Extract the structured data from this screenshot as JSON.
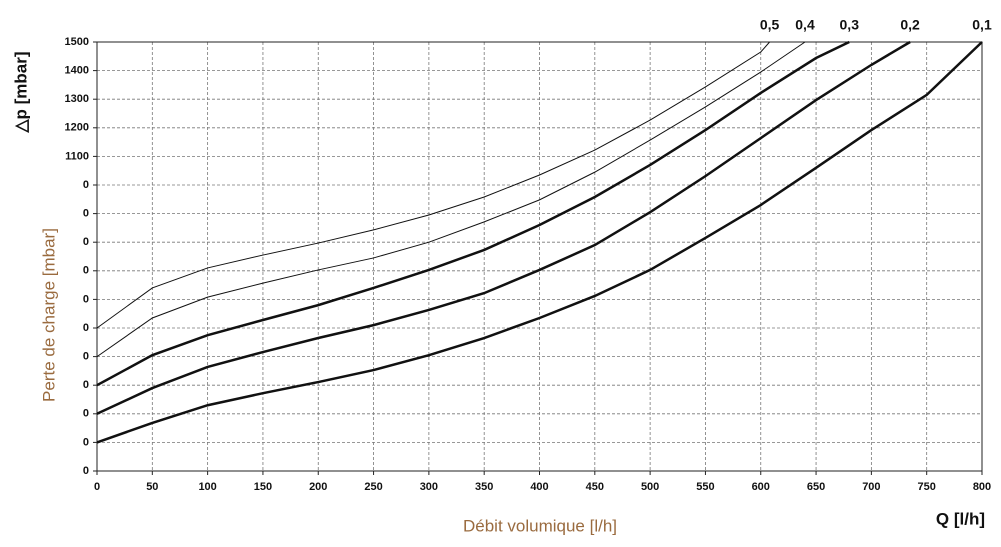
{
  "chart_data": {
    "type": "line",
    "y_label_top": "△p [mbar]",
    "y_label": "Perte de charge [mbar]",
    "x_label": "Débit volumique [l/h]",
    "x_label_right": "Q [l/h]",
    "label_color": "#9a6b3f",
    "xlim": [
      0,
      800
    ],
    "ylim": [
      0,
      1500
    ],
    "xticks": [
      0,
      50,
      100,
      150,
      200,
      250,
      300,
      350,
      400,
      450,
      500,
      550,
      600,
      650,
      700,
      750,
      800
    ],
    "yticks": [
      0,
      {
        "value": 100,
        "label": "0"
      },
      {
        "value": 200,
        "label": "0"
      },
      {
        "value": 300,
        "label": "0"
      },
      {
        "value": 400,
        "label": "0"
      },
      {
        "value": 500,
        "label": "0"
      },
      {
        "value": 600,
        "label": "0"
      },
      {
        "value": 700,
        "label": "0"
      },
      {
        "value": 800,
        "label": "0"
      },
      {
        "value": 900,
        "label": "0"
      },
      {
        "value": 1000,
        "label": "0"
      },
      1100,
      1200,
      1300,
      1400,
      1500
    ],
    "grid": true,
    "series": [
      {
        "name": "0,5",
        "color": "#111111",
        "line_width": 1,
        "x": [
          0,
          50,
          100,
          150,
          200,
          250,
          300,
          350,
          400,
          450,
          500,
          550,
          600,
          608
        ],
        "values": [
          500,
          640,
          710,
          755,
          797,
          843,
          895,
          958,
          1035,
          1122,
          1227,
          1343,
          1465,
          1500
        ]
      },
      {
        "name": "0,4",
        "color": "#111111",
        "line_width": 1,
        "x": [
          0,
          50,
          100,
          150,
          200,
          250,
          300,
          350,
          400,
          450,
          500,
          550,
          600,
          640
        ],
        "values": [
          400,
          535,
          608,
          657,
          703,
          745,
          800,
          871,
          948,
          1045,
          1157,
          1273,
          1395,
          1500
        ]
      },
      {
        "name": "0,3",
        "color": "#111111",
        "line_width": 2.5,
        "x": [
          0,
          50,
          100,
          150,
          200,
          250,
          300,
          350,
          400,
          450,
          500,
          550,
          600,
          650,
          680
        ],
        "values": [
          300,
          405,
          475,
          528,
          580,
          640,
          703,
          773,
          860,
          958,
          1070,
          1192,
          1322,
          1444,
          1500
        ]
      },
      {
        "name": "0,2",
        "color": "#111111",
        "line_width": 2.5,
        "x": [
          0,
          50,
          100,
          150,
          200,
          250,
          300,
          350,
          400,
          450,
          500,
          550,
          600,
          650,
          700,
          735
        ],
        "values": [
          200,
          290,
          364,
          416,
          465,
          510,
          563,
          622,
          703,
          790,
          905,
          1031,
          1164,
          1297,
          1420,
          1500
        ]
      },
      {
        "name": "0,1",
        "color": "#111111",
        "line_width": 2.5,
        "x": [
          0,
          50,
          100,
          150,
          200,
          250,
          300,
          350,
          400,
          450,
          500,
          550,
          600,
          650,
          700,
          750,
          800
        ],
        "values": [
          100,
          168,
          230,
          272,
          311,
          353,
          405,
          465,
          535,
          612,
          703,
          815,
          930,
          1060,
          1192,
          1315,
          1500
        ]
      }
    ]
  }
}
